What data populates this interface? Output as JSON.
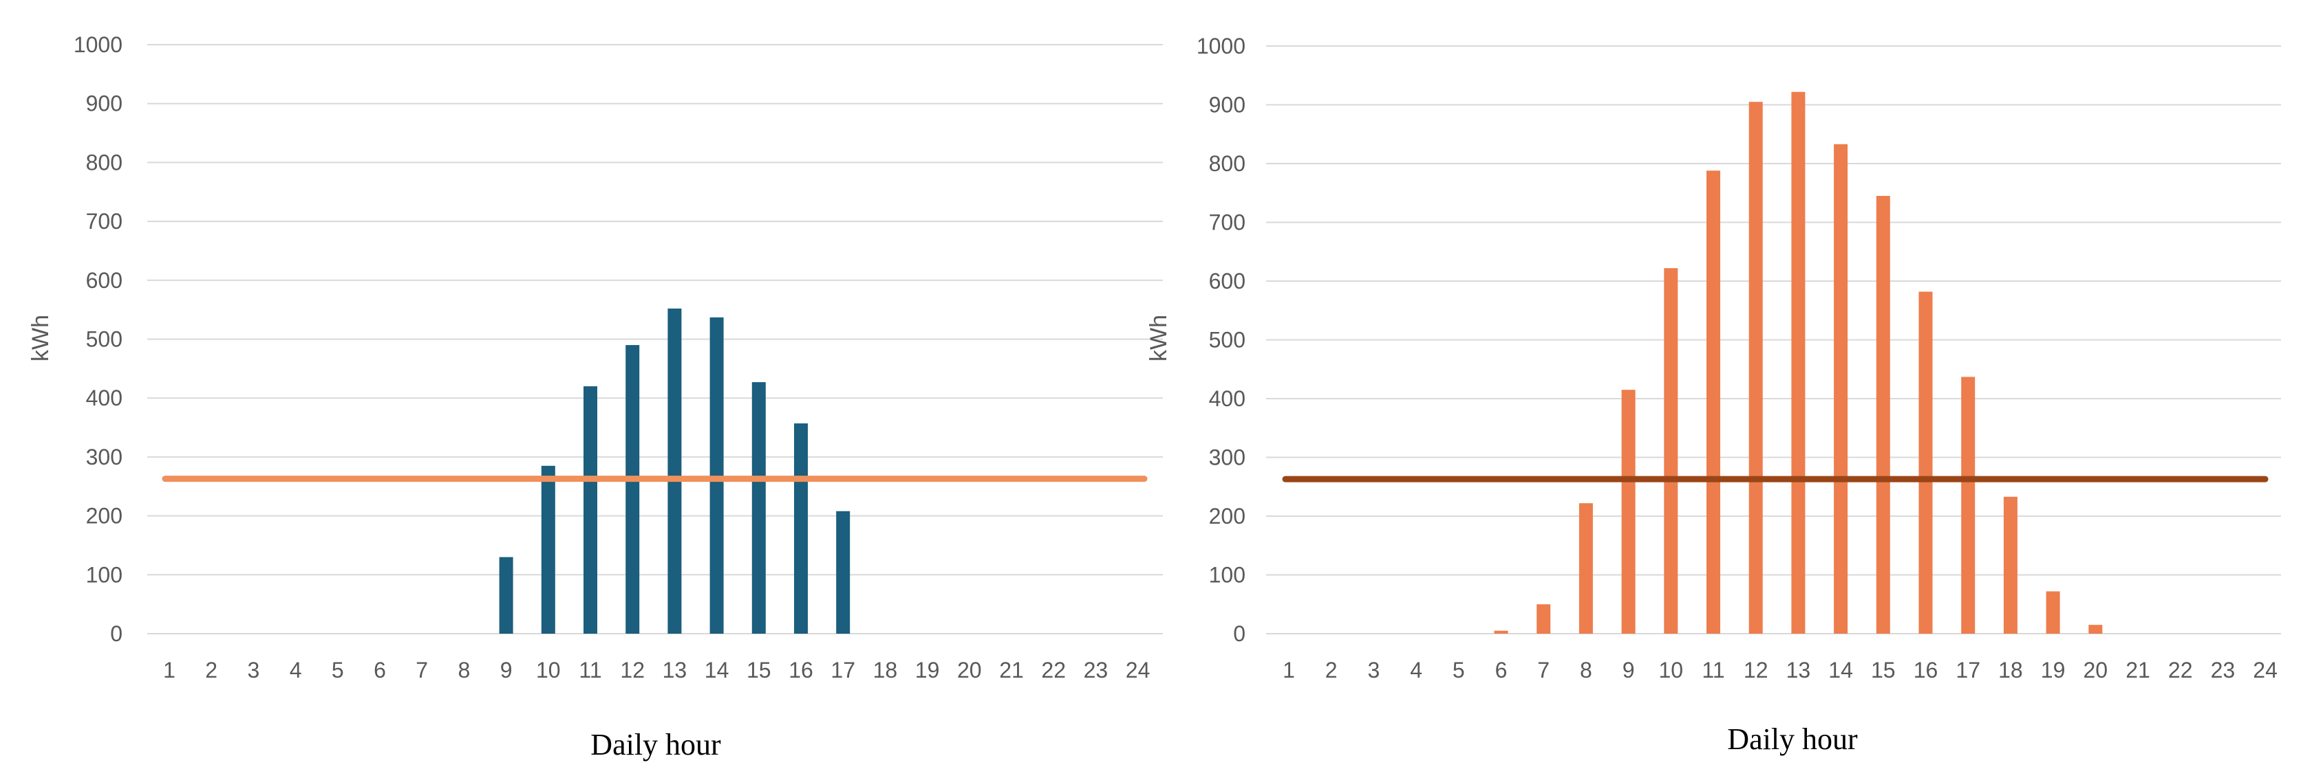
{
  "chart_data": [
    {
      "type": "bar",
      "xlabel": "Daily hour",
      "ylabel": "kWh",
      "ylim": [
        0,
        1000
      ],
      "yticks": [
        0,
        100,
        200,
        300,
        400,
        500,
        600,
        700,
        800,
        900,
        1000
      ],
      "categories": [
        "1",
        "2",
        "3",
        "4",
        "5",
        "6",
        "7",
        "8",
        "9",
        "10",
        "11",
        "12",
        "13",
        "14",
        "15",
        "16",
        "17",
        "18",
        "19",
        "20",
        "21",
        "22",
        "23",
        "24"
      ],
      "series": [
        {
          "type": "bar",
          "color": "#1b5e7e",
          "values": [
            0,
            0,
            0,
            0,
            0,
            0,
            0,
            0,
            130,
            285,
            420,
            490,
            552,
            537,
            427,
            357,
            208,
            0,
            0,
            0,
            0,
            0,
            0,
            0
          ]
        },
        {
          "type": "line",
          "color": "#f0905a",
          "value": 263
        }
      ],
      "grid": true,
      "legend": "none"
    },
    {
      "type": "bar",
      "xlabel": "Daily hour",
      "ylabel": "kWh",
      "ylim": [
        0,
        1000
      ],
      "yticks": [
        0,
        100,
        200,
        300,
        400,
        500,
        600,
        700,
        800,
        900,
        1000
      ],
      "categories": [
        "1",
        "2",
        "3",
        "4",
        "5",
        "6",
        "7",
        "8",
        "9",
        "10",
        "11",
        "12",
        "13",
        "14",
        "15",
        "16",
        "17",
        "18",
        "19",
        "20",
        "21",
        "22",
        "23",
        "24"
      ],
      "series": [
        {
          "type": "bar",
          "color": "#ed7d4c",
          "values": [
            0,
            0,
            0,
            0,
            0,
            5,
            50,
            222,
            415,
            622,
            788,
            905,
            922,
            833,
            745,
            582,
            437,
            233,
            72,
            15,
            0,
            0,
            0,
            0
          ]
        },
        {
          "type": "line",
          "color": "#9a4517",
          "value": 263
        }
      ],
      "grid": true,
      "legend": "none"
    }
  ]
}
